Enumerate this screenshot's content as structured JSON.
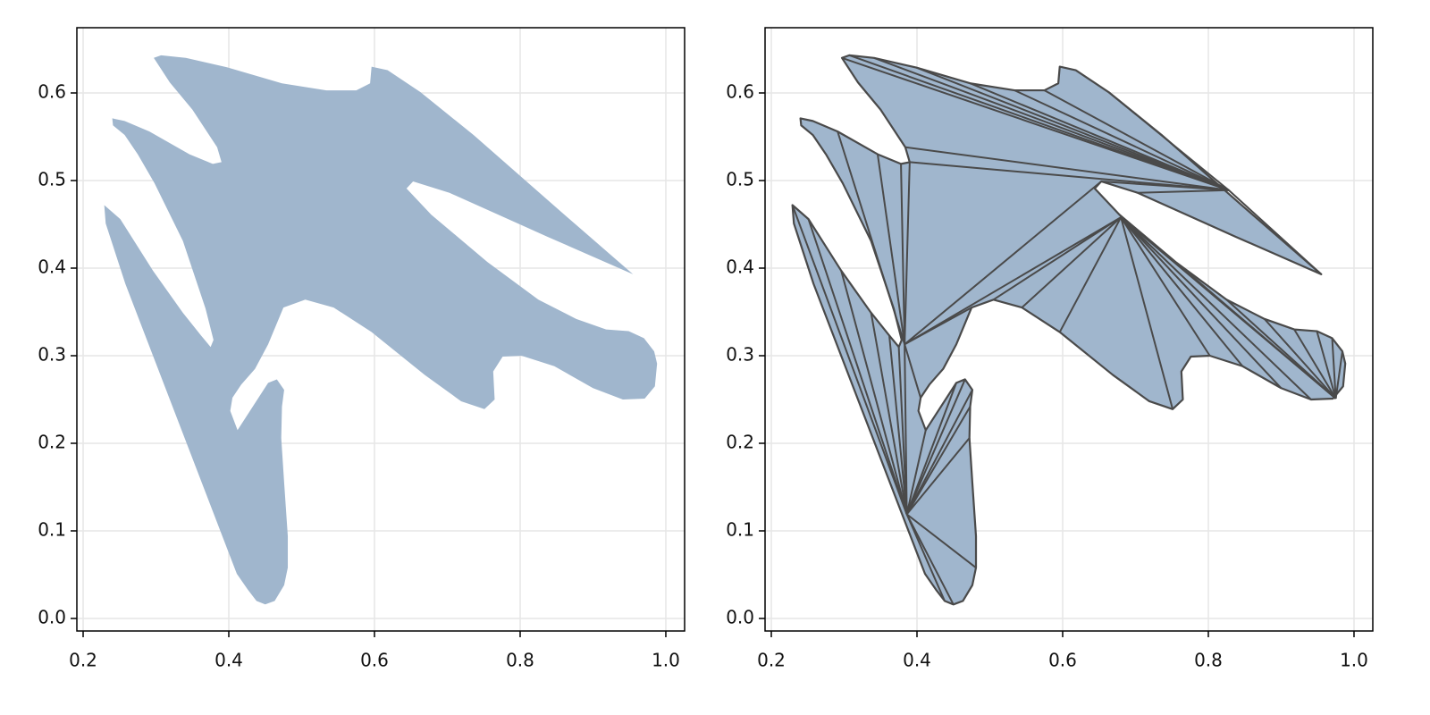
{
  "chart_data": [
    {
      "type": "polygon",
      "color": "#a0b6cd",
      "grid": true,
      "x": [
        0.297,
        0.307,
        0.341,
        0.399,
        0.473,
        0.534,
        0.575,
        0.594,
        0.596,
        0.618,
        0.663,
        0.736,
        0.847,
        0.955,
        0.837,
        0.703,
        0.653,
        0.644,
        0.678,
        0.755,
        0.825,
        0.877,
        0.918,
        0.949,
        0.97,
        0.984,
        0.988,
        0.985,
        0.971,
        0.941,
        0.9,
        0.847,
        0.802,
        0.776,
        0.763,
        0.765,
        0.751,
        0.719,
        0.669,
        0.596,
        0.544,
        0.505,
        0.475,
        0.454,
        0.436,
        0.417,
        0.405,
        0.402,
        0.412,
        0.454,
        0.466,
        0.476,
        0.473,
        0.472,
        0.476,
        0.481,
        0.481,
        0.476,
        0.463,
        0.45,
        0.438,
        0.426,
        0.411,
        0.258,
        0.231,
        0.229,
        0.251,
        0.296,
        0.337,
        0.362,
        0.375,
        0.379,
        0.368,
        0.337,
        0.298,
        0.275,
        0.257,
        0.241,
        0.24,
        0.257,
        0.291,
        0.346,
        0.378,
        0.39,
        0.384,
        0.35,
        0.319
      ],
      "y": [
        0.64,
        0.643,
        0.64,
        0.629,
        0.611,
        0.603,
        0.603,
        0.611,
        0.63,
        0.626,
        0.601,
        0.552,
        0.471,
        0.393,
        0.436,
        0.486,
        0.499,
        0.491,
        0.461,
        0.407,
        0.364,
        0.342,
        0.33,
        0.328,
        0.32,
        0.305,
        0.291,
        0.265,
        0.251,
        0.25,
        0.263,
        0.288,
        0.3,
        0.299,
        0.282,
        0.25,
        0.239,
        0.248,
        0.278,
        0.327,
        0.355,
        0.364,
        0.355,
        0.313,
        0.285,
        0.267,
        0.252,
        0.237,
        0.215,
        0.269,
        0.273,
        0.261,
        0.242,
        0.206,
        0.155,
        0.094,
        0.058,
        0.038,
        0.02,
        0.016,
        0.02,
        0.033,
        0.051,
        0.382,
        0.451,
        0.472,
        0.456,
        0.397,
        0.349,
        0.323,
        0.31,
        0.318,
        0.354,
        0.431,
        0.497,
        0.53,
        0.552,
        0.563,
        0.571,
        0.568,
        0.556,
        0.53,
        0.519,
        0.521,
        0.538,
        0.581,
        0.612
      ],
      "xlim": [
        0.1914,
        1.0258
      ],
      "ylim": [
        -0.0143,
        0.6745
      ],
      "xticks": [
        0.2,
        0.4,
        0.6,
        0.8,
        {
          "value": 1,
          "label": "1.0"
        }
      ],
      "yticks": [
        {
          "value": 0,
          "label": "0.0"
        },
        0.1,
        0.2,
        0.3,
        0.4,
        0.5,
        0.6
      ]
    },
    {
      "type": "triangulation",
      "color": "#a0b6cd",
      "edge_color": "#4a4a4a",
      "grid": true,
      "diagonals": [
        [
          0.828,
          0.489,
          0.297,
          0.64
        ],
        [
          0.828,
          0.489,
          0.307,
          0.643
        ],
        [
          0.828,
          0.489,
          0.341,
          0.64
        ],
        [
          0.828,
          0.489,
          0.399,
          0.629
        ],
        [
          0.828,
          0.489,
          0.473,
          0.611
        ],
        [
          0.828,
          0.489,
          0.534,
          0.603
        ],
        [
          0.828,
          0.489,
          0.575,
          0.603
        ],
        [
          0.828,
          0.489,
          0.663,
          0.601
        ],
        [
          0.828,
          0.489,
          0.384,
          0.538
        ],
        [
          0.828,
          0.489,
          0.39,
          0.521
        ],
        [
          0.828,
          0.489,
          0.653,
          0.499
        ],
        [
          0.828,
          0.489,
          0.703,
          0.486
        ],
        [
          0.828,
          0.489,
          0.955,
          0.393
        ],
        [
          0.383,
          0.313,
          0.39,
          0.521
        ],
        [
          0.383,
          0.313,
          0.378,
          0.519
        ],
        [
          0.383,
          0.313,
          0.346,
          0.53
        ],
        [
          0.383,
          0.313,
          0.291,
          0.556
        ],
        [
          0.383,
          0.313,
          0.653,
          0.499
        ],
        [
          0.383,
          0.313,
          0.68,
          0.458
        ],
        [
          0.383,
          0.313,
          0.475,
          0.355
        ],
        [
          0.383,
          0.313,
          0.405,
          0.252
        ],
        [
          0.68,
          0.458,
          0.505,
          0.364
        ],
        [
          0.68,
          0.458,
          0.544,
          0.355
        ],
        [
          0.68,
          0.458,
          0.596,
          0.327
        ],
        [
          0.68,
          0.458,
          0.751,
          0.239
        ],
        [
          0.68,
          0.458,
          0.975,
          0.251
        ],
        [
          0.68,
          0.458,
          0.802,
          0.3
        ],
        [
          0.68,
          0.458,
          0.847,
          0.288
        ],
        [
          0.68,
          0.458,
          0.9,
          0.263
        ],
        [
          0.68,
          0.458,
          0.941,
          0.25
        ],
        [
          0.975,
          0.251,
          0.755,
          0.407
        ],
        [
          0.975,
          0.251,
          0.825,
          0.364
        ],
        [
          0.975,
          0.251,
          0.877,
          0.342
        ],
        [
          0.975,
          0.251,
          0.918,
          0.33
        ],
        [
          0.975,
          0.251,
          0.949,
          0.328
        ],
        [
          0.975,
          0.251,
          0.97,
          0.32
        ],
        [
          0.975,
          0.251,
          0.984,
          0.305
        ],
        [
          0.386,
          0.119,
          0.383,
          0.313
        ],
        [
          0.386,
          0.119,
          0.229,
          0.472
        ],
        [
          0.386,
          0.119,
          0.251,
          0.456
        ],
        [
          0.386,
          0.119,
          0.296,
          0.397
        ],
        [
          0.386,
          0.119,
          0.337,
          0.349
        ],
        [
          0.386,
          0.119,
          0.362,
          0.323
        ],
        [
          0.386,
          0.119,
          0.375,
          0.31
        ],
        [
          0.386,
          0.119,
          0.412,
          0.215
        ],
        [
          0.386,
          0.119,
          0.454,
          0.269
        ],
        [
          0.386,
          0.119,
          0.466,
          0.273
        ],
        [
          0.386,
          0.119,
          0.476,
          0.261
        ],
        [
          0.386,
          0.119,
          0.473,
          0.242
        ],
        [
          0.386,
          0.119,
          0.472,
          0.206
        ],
        [
          0.386,
          0.119,
          0.481,
          0.058
        ],
        [
          0.386,
          0.119,
          0.45,
          0.016
        ],
        [
          0.386,
          0.119,
          0.438,
          0.02
        ]
      ],
      "xlim": [
        0.1914,
        1.0258
      ],
      "ylim": [
        -0.0143,
        0.6745
      ],
      "xticks": [
        0.2,
        0.4,
        0.6,
        0.8,
        {
          "value": 1,
          "label": "1.0"
        }
      ],
      "yticks": [
        {
          "value": 0,
          "label": "0.0"
        },
        0.1,
        0.2,
        0.3,
        0.4,
        0.5,
        0.6
      ]
    }
  ]
}
